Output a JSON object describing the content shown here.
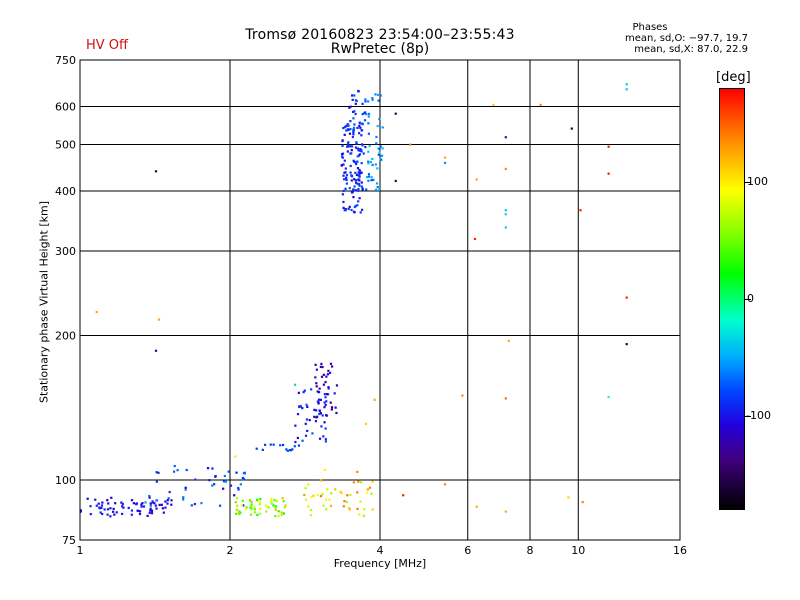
{
  "header": {
    "title_line1": "Tromsø 20160823 23:54:00–23:55:43",
    "title_line2": "RwPretec (8p)",
    "status": "HV Off",
    "phases_title": "Phases",
    "phases_o": "mean, sd,O: −97.7, 19.7",
    "phases_x": "mean, sd,X:  87.0, 22.9"
  },
  "colors": {
    "status": "#d01010",
    "grid": "#000000",
    "background": "#ffffff"
  },
  "chart_data": {
    "type": "scatter",
    "xlabel": "Frequency [MHz]",
    "ylabel": "Stationary phase Virtual Height [km]",
    "xscale": "log",
    "yscale": "log",
    "xlim": [
      1,
      16
    ],
    "ylim": [
      75,
      750
    ],
    "xticks": [
      1,
      2,
      4,
      6,
      8,
      10,
      16
    ],
    "xtick_labels": [
      "1",
      "2",
      "4",
      "6",
      "8",
      "10",
      "16"
    ],
    "yticks": [
      75,
      100,
      200,
      300,
      400,
      500,
      600,
      750
    ],
    "ytick_labels": [
      "75",
      "100",
      "200",
      "300",
      "400",
      "500",
      "600",
      "750"
    ],
    "grid": true,
    "colorbar": {
      "label": "[deg]",
      "range": [
        -180,
        180
      ],
      "ticks": [
        100,
        0,
        -100
      ],
      "tick_labels": [
        "100",
        "0",
        "-100"
      ]
    },
    "clusters": [
      {
        "f": [
          1.0,
          1.5
        ],
        "h": [
          84,
          92
        ],
        "phase": [
          -125,
          -95
        ],
        "n": 70
      },
      {
        "f": [
          1.35,
          2.15
        ],
        "h": [
          88,
          108
        ],
        "phase": [
          -125,
          -60
        ],
        "n": 50
      },
      {
        "f": [
          2.05,
          2.6
        ],
        "h": [
          84,
          92
        ],
        "phase": [
          20,
          120
        ],
        "n": 55
      },
      {
        "f": [
          2.25,
          2.75
        ],
        "h": [
          115,
          119
        ],
        "phase": [
          -95,
          -80
        ],
        "n": 14
      },
      {
        "f": [
          2.7,
          3.15
        ],
        "h": [
          120,
          155
        ],
        "phase": [
          -130,
          -80
        ],
        "n": 45
      },
      {
        "f": [
          2.95,
          3.3
        ],
        "h": [
          135,
          180
        ],
        "phase": [
          -140,
          -100
        ],
        "n": 40
      },
      {
        "f": [
          2.8,
          3.9
        ],
        "h": [
          84,
          100
        ],
        "phase": [
          60,
          140
        ],
        "n": 45
      },
      {
        "f": [
          3.35,
          3.7
        ],
        "h": [
          360,
          560
        ],
        "phase": [
          -115,
          -80
        ],
        "n": 120
      },
      {
        "f": [
          3.45,
          3.8
        ],
        "h": [
          400,
          650
        ],
        "phase": [
          -110,
          -70
        ],
        "n": 50
      },
      {
        "f": [
          3.75,
          4.05
        ],
        "h": [
          400,
          650
        ],
        "phase": [
          -80,
          -40
        ],
        "n": 45
      }
    ],
    "points": [
      {
        "f": 1.08,
        "h": 224,
        "phase": 120
      },
      {
        "f": 1.42,
        "h": 440,
        "phase": -150
      },
      {
        "f": 1.42,
        "h": 186,
        "phase": -140
      },
      {
        "f": 1.44,
        "h": 216,
        "phase": 120
      },
      {
        "f": 2.05,
        "h": 112,
        "phase": 100
      },
      {
        "f": 2.7,
        "h": 158,
        "phase": -40
      },
      {
        "f": 3.1,
        "h": 105,
        "phase": 100
      },
      {
        "f": 3.6,
        "h": 104,
        "phase": 130
      },
      {
        "f": 3.75,
        "h": 131,
        "phase": 110
      },
      {
        "f": 3.9,
        "h": 147,
        "phase": 120
      },
      {
        "f": 4.3,
        "h": 580,
        "phase": -150
      },
      {
        "f": 4.3,
        "h": 420,
        "phase": -150
      },
      {
        "f": 4.6,
        "h": 500,
        "phase": 130
      },
      {
        "f": 4.45,
        "h": 93,
        "phase": 170
      },
      {
        "f": 5.4,
        "h": 470,
        "phase": 120
      },
      {
        "f": 5.4,
        "h": 458,
        "phase": -60
      },
      {
        "f": 5.4,
        "h": 98,
        "phase": 130
      },
      {
        "f": 5.85,
        "h": 150,
        "phase": 130
      },
      {
        "f": 6.25,
        "h": 423,
        "phase": 120
      },
      {
        "f": 6.2,
        "h": 318,
        "phase": 170
      },
      {
        "f": 6.25,
        "h": 88,
        "phase": 120
      },
      {
        "f": 6.75,
        "h": 605,
        "phase": 110
      },
      {
        "f": 7.15,
        "h": 518,
        "phase": -110
      },
      {
        "f": 7.15,
        "h": 445,
        "phase": 130
      },
      {
        "f": 7.15,
        "h": 365,
        "phase": -40
      },
      {
        "f": 7.15,
        "h": 358,
        "phase": -40
      },
      {
        "f": 7.15,
        "h": 336,
        "phase": -40
      },
      {
        "f": 7.25,
        "h": 195,
        "phase": 120
      },
      {
        "f": 7.15,
        "h": 148,
        "phase": 140
      },
      {
        "f": 7.15,
        "h": 86,
        "phase": 120
      },
      {
        "f": 8.4,
        "h": 605,
        "phase": 130
      },
      {
        "f": 9.55,
        "h": 92,
        "phase": 110
      },
      {
        "f": 9.7,
        "h": 540,
        "phase": -160
      },
      {
        "f": 10.1,
        "h": 365,
        "phase": 170
      },
      {
        "f": 10.2,
        "h": 90,
        "phase": 130
      },
      {
        "f": 11.5,
        "h": 495,
        "phase": 170
      },
      {
        "f": 11.5,
        "h": 435,
        "phase": 170
      },
      {
        "f": 11.5,
        "h": 149,
        "phase": -20
      },
      {
        "f": 12.5,
        "h": 668,
        "phase": -40
      },
      {
        "f": 12.5,
        "h": 652,
        "phase": -40
      },
      {
        "f": 12.5,
        "h": 240,
        "phase": 170
      },
      {
        "f": 12.5,
        "h": 192,
        "phase": -160
      }
    ]
  }
}
